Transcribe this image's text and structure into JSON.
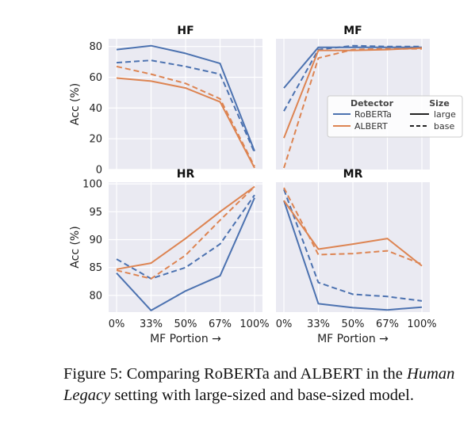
{
  "chart_data": {
    "type": "line",
    "x_categories": [
      "0%",
      "33%",
      "50%",
      "67%",
      "100%"
    ],
    "xlabel": "MF Portion →",
    "ylabel": "Acc (%)",
    "grid": true,
    "colors": {
      "RoBERTa": "#4c72b0",
      "ALBERT": "#dd8452",
      "panel_bg": "#eaeaf2"
    },
    "legend": {
      "placement": "inside MF panel, right",
      "detector_title": "Detector",
      "size_title": "Size",
      "detectors": [
        "RoBERTa",
        "ALBERT"
      ],
      "sizes": [
        {
          "name": "large",
          "dash": "solid"
        },
        {
          "name": "base",
          "dash": "dashed"
        }
      ]
    },
    "panels": [
      {
        "title": "HF",
        "ylim": [
          0,
          85
        ],
        "yticks": [
          "0",
          "20",
          "40",
          "60",
          "80"
        ],
        "ytick_values": [
          0,
          20,
          40,
          60,
          80
        ],
        "series": [
          {
            "detector": "RoBERTa",
            "size": "large",
            "values": [
              78,
              80.5,
              75.5,
              69,
              12
            ]
          },
          {
            "detector": "RoBERTa",
            "size": "base",
            "values": [
              69.5,
              71,
              67,
              62,
              11
            ]
          },
          {
            "detector": "ALBERT",
            "size": "large",
            "values": [
              59.5,
              57.5,
              53,
              44,
              1
            ]
          },
          {
            "detector": "ALBERT",
            "size": "base",
            "values": [
              67,
              62,
              56,
              46,
              2
            ]
          }
        ]
      },
      {
        "title": "MF",
        "ylim": [
          0,
          85
        ],
        "yticks": [],
        "ytick_values": [],
        "series": [
          {
            "detector": "RoBERTa",
            "size": "large",
            "values": [
              53,
              79.5,
              79.5,
              79.5,
              79.5
            ]
          },
          {
            "detector": "RoBERTa",
            "size": "base",
            "values": [
              38,
              78,
              80.5,
              80,
              80
            ]
          },
          {
            "detector": "ALBERT",
            "size": "large",
            "values": [
              20.5,
              77.5,
              77.5,
              78,
              79
            ]
          },
          {
            "detector": "ALBERT",
            "size": "base",
            "values": [
              1,
              72.5,
              78,
              78.5,
              78.5
            ]
          }
        ]
      },
      {
        "title": "HR",
        "ylim": [
          77,
          100.3
        ],
        "yticks": [
          "80",
          "85",
          "90",
          "95",
          "100"
        ],
        "ytick_values": [
          80,
          85,
          90,
          95,
          100
        ],
        "series": [
          {
            "detector": "RoBERTa",
            "size": "large",
            "values": [
              84,
              77.3,
              80.8,
              83.5,
              97.5
            ]
          },
          {
            "detector": "RoBERTa",
            "size": "base",
            "values": [
              86.5,
              83,
              85,
              89.2,
              98
            ]
          },
          {
            "detector": "ALBERT",
            "size": "large",
            "values": [
              84.7,
              85.8,
              90.2,
              95,
              99.5
            ]
          },
          {
            "detector": "ALBERT",
            "size": "base",
            "values": [
              84.5,
              83,
              87.2,
              93.5,
              99.5
            ]
          }
        ]
      },
      {
        "title": "MR",
        "ylim": [
          77,
          100.3
        ],
        "yticks": [],
        "ytick_values": [],
        "series": [
          {
            "detector": "RoBERTa",
            "size": "large",
            "values": [
              97,
              78.5,
              77.8,
              77.4,
              77.9
            ]
          },
          {
            "detector": "RoBERTa",
            "size": "base",
            "values": [
              99,
              82.3,
              80.2,
              79.8,
              79
            ]
          },
          {
            "detector": "ALBERT",
            "size": "large",
            "values": [
              97,
              88.3,
              89.2,
              90.2,
              85.3
            ]
          },
          {
            "detector": "ALBERT",
            "size": "base",
            "values": [
              99.3,
              87.3,
              87.5,
              88,
              85.6
            ]
          }
        ]
      }
    ]
  },
  "caption": {
    "prefix": "Figure 5: Comparing RoBERTa and ALBERT in the",
    "italic": "Human Legacy",
    "suffix": "setting with large-sized and base-sized model."
  }
}
